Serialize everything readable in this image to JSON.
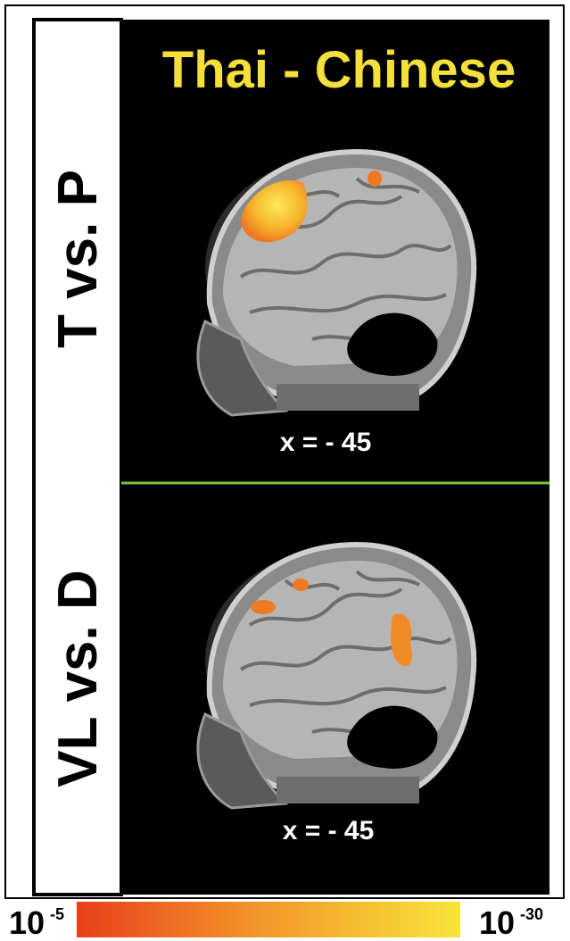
{
  "figure": {
    "title": "Thai - Chinese",
    "panels": [
      {
        "label": "T vs. P",
        "coordinate": "x = - 45"
      },
      {
        "label": "VL vs. D",
        "coordinate": "x = - 45"
      }
    ],
    "colorbar": {
      "min": {
        "base": "10",
        "exponent": "-5"
      },
      "max": {
        "base": "10",
        "exponent": "-30"
      }
    }
  }
}
